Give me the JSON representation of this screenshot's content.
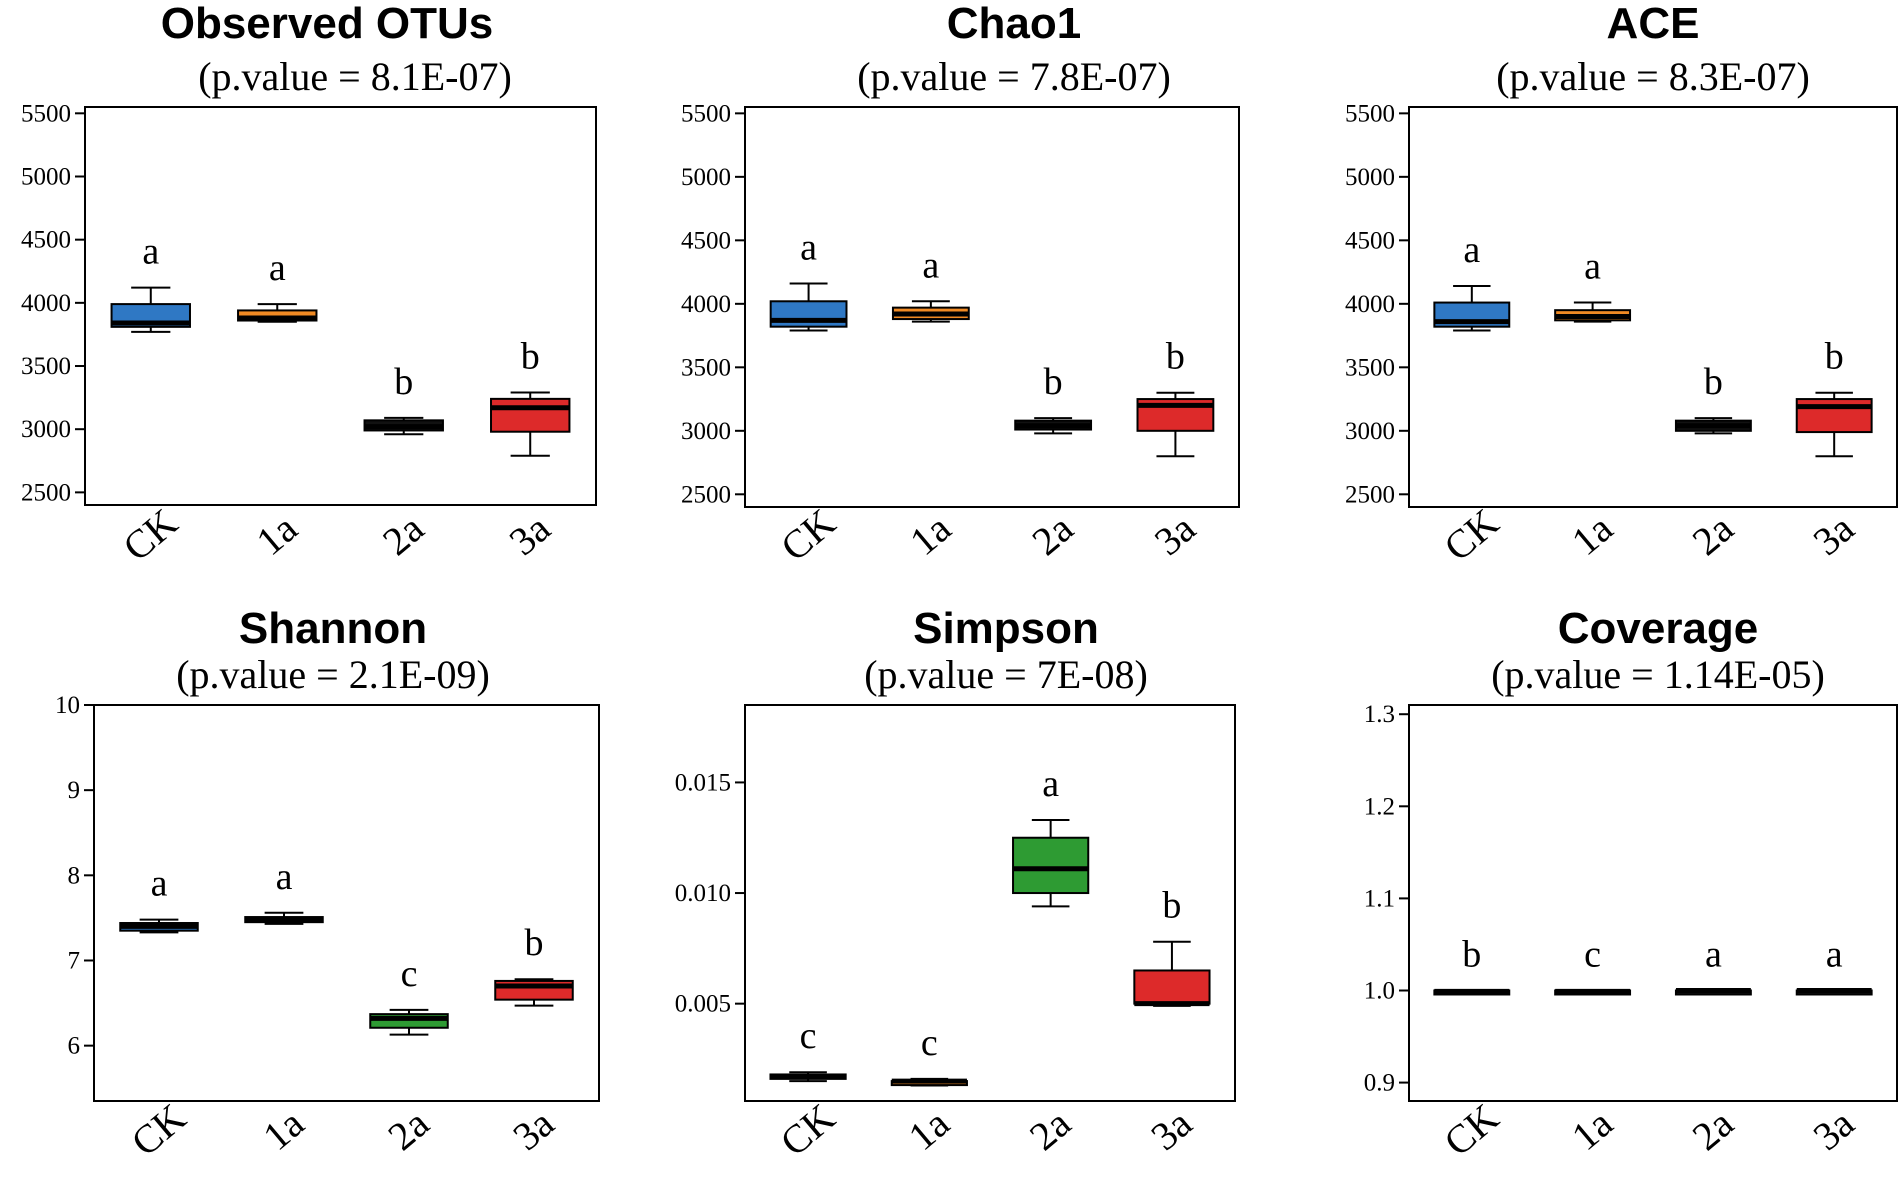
{
  "chart_data": [
    {
      "type": "box",
      "title": "Observed OTUs",
      "subtitle": "(p.value = 8.1E-07)",
      "categories": [
        "CK",
        "1a",
        "2a",
        "3a"
      ],
      "ylim": [
        2400,
        5550
      ],
      "yticks": [
        2500,
        3000,
        3500,
        4000,
        4500,
        5000,
        5500
      ],
      "tick_labels": [
        "2500",
        "3000",
        "3500",
        "4000",
        "4500",
        "5000",
        "5500"
      ],
      "boxes": [
        {
          "min": 3770,
          "q1": 3810,
          "median": 3840,
          "q3": 3990,
          "max": 4120,
          "color": "#2f78c4",
          "letter": "a"
        },
        {
          "min": 3850,
          "q1": 3860,
          "median": 3880,
          "q3": 3940,
          "max": 3990,
          "color": "#f08a24",
          "letter": "a"
        },
        {
          "min": 2960,
          "q1": 2990,
          "median": 3020,
          "q3": 3070,
          "max": 3090,
          "color": "#111111",
          "letter": "b"
        },
        {
          "min": 2790,
          "q1": 2980,
          "median": 3170,
          "q3": 3240,
          "max": 3290,
          "color": "#dd2a2a",
          "letter": "b"
        }
      ]
    },
    {
      "type": "box",
      "title": "Chao1",
      "subtitle": "(p.value = 7.8E-07)",
      "categories": [
        "CK",
        "1a",
        "2a",
        "3a"
      ],
      "ylim": [
        2400,
        5550
      ],
      "yticks": [
        2500,
        3000,
        3500,
        4000,
        4500,
        5000,
        5500
      ],
      "tick_labels": [
        "2500",
        "3000",
        "3500",
        "4000",
        "4500",
        "5000",
        "5500"
      ],
      "boxes": [
        {
          "min": 3790,
          "q1": 3820,
          "median": 3870,
          "q3": 4020,
          "max": 4160,
          "color": "#2f78c4",
          "letter": "a"
        },
        {
          "min": 3860,
          "q1": 3880,
          "median": 3920,
          "q3": 3970,
          "max": 4020,
          "color": "#f08a24",
          "letter": "a"
        },
        {
          "min": 2980,
          "q1": 3010,
          "median": 3040,
          "q3": 3080,
          "max": 3100,
          "color": "#111111",
          "letter": "b"
        },
        {
          "min": 2800,
          "q1": 3000,
          "median": 3200,
          "q3": 3250,
          "max": 3300,
          "color": "#dd2a2a",
          "letter": "b"
        }
      ]
    },
    {
      "type": "box",
      "title": "ACE",
      "subtitle": "(p.value = 8.3E-07)",
      "categories": [
        "CK",
        "1a",
        "2a",
        "3a"
      ],
      "ylim": [
        2400,
        5550
      ],
      "yticks": [
        2500,
        3000,
        3500,
        4000,
        4500,
        5000,
        5500
      ],
      "tick_labels": [
        "2500",
        "3000",
        "3500",
        "4000",
        "4500",
        "5000",
        "5500"
      ],
      "boxes": [
        {
          "min": 3790,
          "q1": 3820,
          "median": 3860,
          "q3": 4010,
          "max": 4140,
          "color": "#2f78c4",
          "letter": "a"
        },
        {
          "min": 3860,
          "q1": 3870,
          "median": 3900,
          "q3": 3950,
          "max": 4010,
          "color": "#f08a24",
          "letter": "a"
        },
        {
          "min": 2980,
          "q1": 3000,
          "median": 3040,
          "q3": 3080,
          "max": 3100,
          "color": "#111111",
          "letter": "b"
        },
        {
          "min": 2800,
          "q1": 2990,
          "median": 3190,
          "q3": 3250,
          "max": 3300,
          "color": "#dd2a2a",
          "letter": "b"
        }
      ]
    },
    {
      "type": "box",
      "title": "Shannon",
      "subtitle": "(p.value = 2.1E-09)",
      "categories": [
        "CK",
        "1a",
        "2a",
        "3a"
      ],
      "ylim": [
        5.35,
        10
      ],
      "yticks": [
        6,
        7,
        8,
        9,
        10
      ],
      "tick_labels": [
        "6",
        "7",
        "8",
        "9",
        "10"
      ],
      "boxes": [
        {
          "min": 7.33,
          "q1": 7.35,
          "median": 7.4,
          "q3": 7.44,
          "max": 7.48,
          "color": "#2f78c4",
          "letter": "a"
        },
        {
          "min": 7.43,
          "q1": 7.45,
          "median": 7.47,
          "q3": 7.51,
          "max": 7.56,
          "color": "#f08a24",
          "letter": "a"
        },
        {
          "min": 6.13,
          "q1": 6.21,
          "median": 6.32,
          "q3": 6.37,
          "max": 6.42,
          "color": "#2e9b33",
          "letter": "c"
        },
        {
          "min": 6.47,
          "q1": 6.54,
          "median": 6.7,
          "q3": 6.76,
          "max": 6.78,
          "color": "#dd2a2a",
          "letter": "b"
        }
      ]
    },
    {
      "type": "box",
      "title": "Simpson",
      "subtitle": "(p.value = 7E-08)",
      "categories": [
        "CK",
        "1a",
        "2a",
        "3a"
      ],
      "ylim": [
        0.0006,
        0.0185
      ],
      "yticks": [
        0.005,
        0.01,
        0.015
      ],
      "tick_labels": [
        "0.005",
        "0.010",
        "0.015"
      ],
      "boxes": [
        {
          "min": 0.0015,
          "q1": 0.0016,
          "median": 0.0017,
          "q3": 0.0018,
          "max": 0.0019,
          "color": "#2f78c4",
          "letter": "c"
        },
        {
          "min": 0.0013,
          "q1": 0.0014,
          "median": 0.0015,
          "q3": 0.0015,
          "max": 0.0016,
          "color": "#f08a24",
          "letter": "c"
        },
        {
          "min": 0.0094,
          "q1": 0.01,
          "median": 0.0111,
          "q3": 0.0125,
          "max": 0.0133,
          "color": "#2e9b33",
          "letter": "a"
        },
        {
          "min": 0.0049,
          "q1": 0.005,
          "median": 0.005,
          "q3": 0.0065,
          "max": 0.0078,
          "color": "#dd2a2a",
          "letter": "b"
        }
      ]
    },
    {
      "type": "box",
      "title": "Coverage",
      "subtitle": "(p.value = 1.14E-05)",
      "categories": [
        "CK",
        "1a",
        "2a",
        "3a"
      ],
      "ylim": [
        0.88,
        1.31
      ],
      "yticks": [
        0.9,
        1.0,
        1.1,
        1.2,
        1.3
      ],
      "tick_labels": [
        "0.9",
        "1.0",
        "1.1",
        "1.2",
        "1.3"
      ],
      "boxes": [
        {
          "min": 0.998,
          "q1": 0.999,
          "median": 0.999,
          "q3": 1.0,
          "max": 1.0,
          "color": "#111111",
          "letter": "b"
        },
        {
          "min": 0.998,
          "q1": 0.998,
          "median": 0.999,
          "q3": 1.0,
          "max": 1.0,
          "color": "#111111",
          "letter": "c"
        },
        {
          "min": 0.999,
          "q1": 0.999,
          "median": 1.0,
          "q3": 1.0,
          "max": 1.0,
          "color": "#111111",
          "letter": "a"
        },
        {
          "min": 0.999,
          "q1": 0.999,
          "median": 1.0,
          "q3": 1.0,
          "max": 1.0,
          "color": "#111111",
          "letter": "a"
        }
      ]
    }
  ]
}
